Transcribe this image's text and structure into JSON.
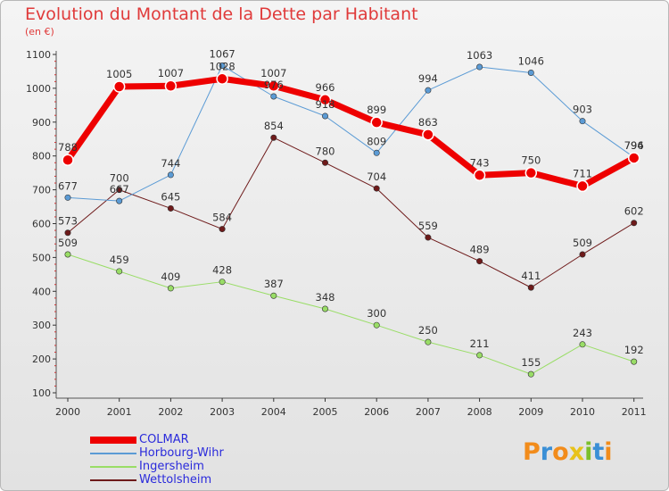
{
  "header": {
    "title": "Evolution du Montant de la Dette par Habitant",
    "unit": "(en €)"
  },
  "chart_data": {
    "type": "line",
    "title": "Evolution du Montant de la Dette par Habitant",
    "xlabel": "",
    "ylabel": "(en €)",
    "categories": [
      "2000",
      "2001",
      "2002",
      "2003",
      "2004",
      "2005",
      "2006",
      "2007",
      "2008",
      "2009",
      "2010",
      "2011"
    ],
    "ylim": [
      100,
      1100
    ],
    "yticks": [
      100,
      200,
      300,
      400,
      500,
      600,
      700,
      800,
      900,
      1000,
      1100
    ],
    "grid": false,
    "legend_position": "bottom-left",
    "series": [
      {
        "name": "Wettolsheim",
        "color": "#6e1a1a",
        "line_width": 1,
        "values": [
          573,
          700,
          645,
          584,
          854,
          780,
          704,
          559,
          489,
          411,
          509,
          602
        ]
      },
      {
        "name": "Ingersheim",
        "color": "#99dd66",
        "line_width": 1,
        "values": [
          509,
          459,
          409,
          428,
          387,
          348,
          300,
          250,
          211,
          155,
          243,
          192
        ]
      },
      {
        "name": "Horbourg-Wihr",
        "color": "#5b9bd5",
        "line_width": 1,
        "values": [
          677,
          667,
          744,
          1067,
          976,
          918,
          809,
          994,
          1063,
          1046,
          903,
          796
        ]
      },
      {
        "name": "COLMAR",
        "color": "#ee0000",
        "line_width": 7,
        "values": [
          788,
          1005,
          1007,
          1028,
          1007,
          966,
          899,
          863,
          743,
          750,
          711,
          794
        ]
      }
    ]
  },
  "legend": {
    "items": [
      {
        "label": "COLMAR",
        "color": "#ee0000",
        "thickness": 8
      },
      {
        "label": "Horbourg-Wihr",
        "color": "#5b9bd5",
        "thickness": 2
      },
      {
        "label": "Ingersheim",
        "color": "#99dd66",
        "thickness": 2
      },
      {
        "label": "Wettolsheim",
        "color": "#6e1a1a",
        "thickness": 2
      }
    ]
  },
  "brand": {
    "name": "Proxiti",
    "letters": [
      "P",
      "r",
      "o",
      "x",
      "i",
      "t",
      "i"
    ],
    "colors": [
      "#f28c1b",
      "#3a8fd6",
      "#f28c1b",
      "#e8c21a",
      "#7bbf2a",
      "#3a8fd6",
      "#f28c1b"
    ]
  }
}
